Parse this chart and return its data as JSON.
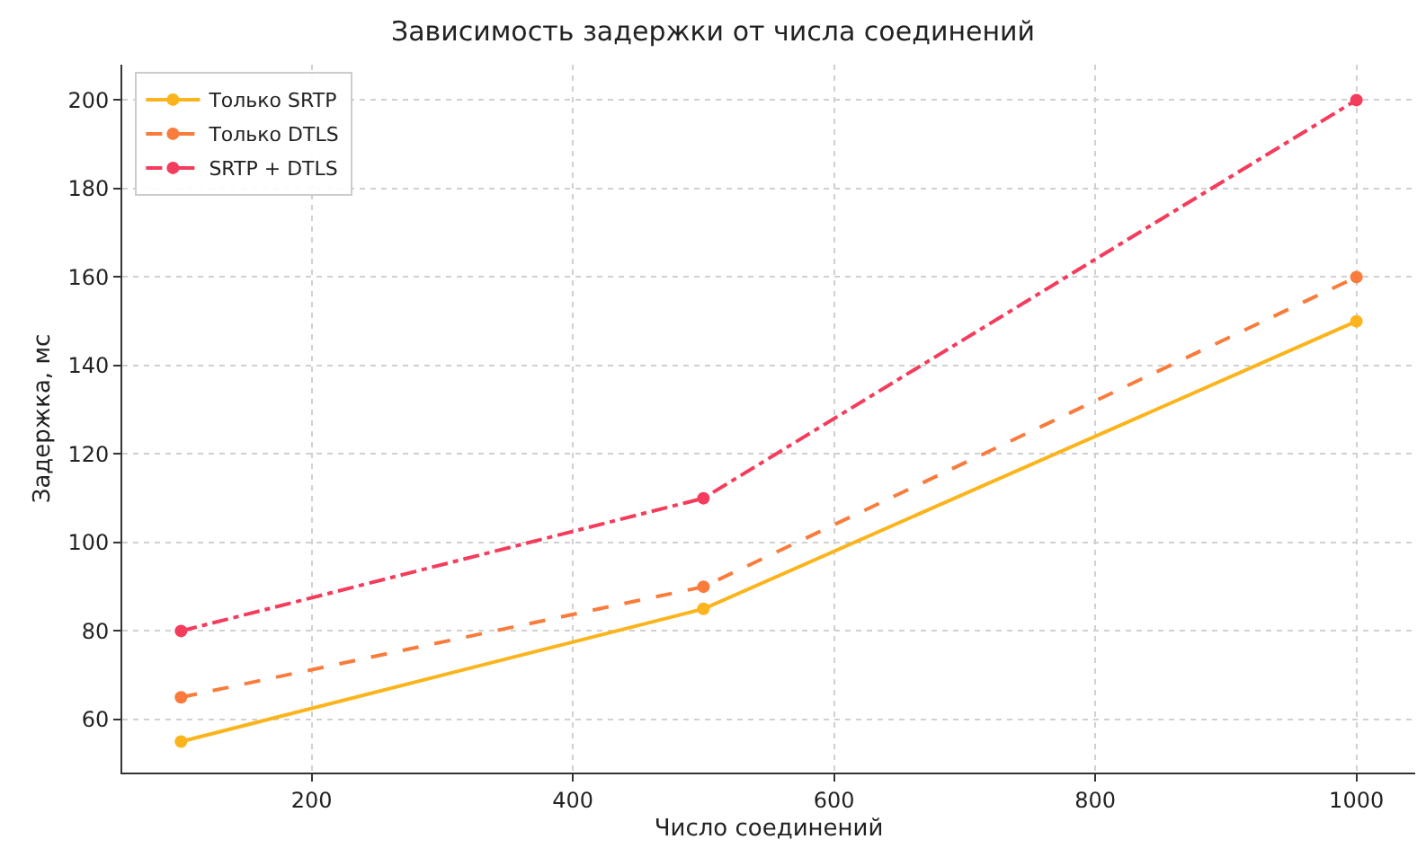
{
  "chart_data": {
    "type": "line",
    "title": "Зависимость задержки от числа соединений",
    "xlabel": "Число соединений",
    "ylabel": "Задержка, мс",
    "x": [
      100,
      500,
      1000
    ],
    "series": [
      {
        "name": "Только SRTP",
        "color": "#fbb41c",
        "values": [
          55,
          85,
          150
        ],
        "line_style": "solid"
      },
      {
        "name": "Только DTLS",
        "color": "#f97c3c",
        "values": [
          65,
          90,
          160
        ],
        "line_style": "dashed"
      },
      {
        "name": "SRTP + DTLS",
        "color": "#f43c5c",
        "values": [
          80,
          110,
          200
        ],
        "line_style": "dashdot"
      }
    ],
    "xlim": [
      55,
      1045
    ],
    "xticks": [
      200,
      400,
      600,
      800,
      1000
    ],
    "ylim": [
      48,
      208
    ],
    "yticks": [
      60,
      80,
      100,
      120,
      140,
      160,
      180,
      200
    ],
    "grid": true,
    "legend": "top left",
    "marker": "circle"
  }
}
